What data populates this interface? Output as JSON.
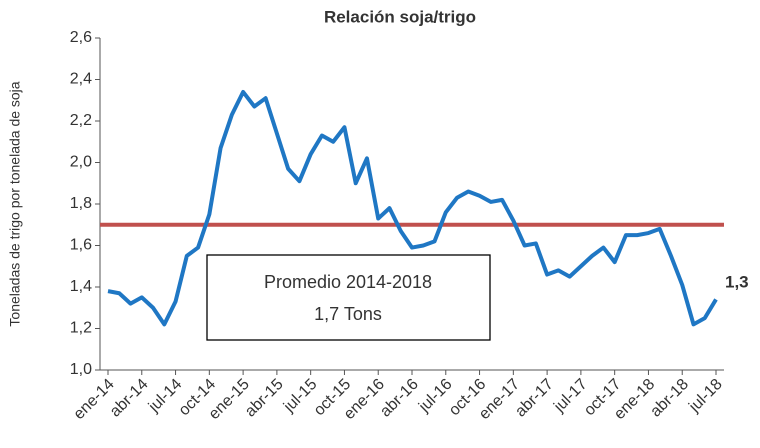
{
  "chart_data": {
    "type": "line",
    "title": "Relación soja/trigo",
    "y_label": "Toneladas de trigo por tonelada de soja",
    "categories": [
      "ene-14",
      null,
      null,
      "abr-14",
      null,
      null,
      "jul-14",
      null,
      null,
      "oct-14",
      null,
      null,
      "ene-15",
      null,
      null,
      "abr-15",
      null,
      null,
      "jul-15",
      null,
      null,
      "oct-15",
      null,
      null,
      "ene-16",
      null,
      null,
      "abr-16",
      null,
      null,
      "jul-16",
      null,
      null,
      "oct-16",
      null,
      null,
      "ene-17",
      null,
      null,
      "abr-17",
      null,
      null,
      "jul-17",
      null,
      null,
      "oct-17",
      null,
      null,
      "ene-18",
      null,
      null,
      "abr-18",
      null,
      null,
      "jul-18"
    ],
    "series": [
      {
        "color": "#1f77c4",
        "values": [
          1.38,
          1.37,
          1.32,
          1.35,
          1.3,
          1.22,
          1.33,
          1.55,
          1.59,
          1.75,
          2.07,
          2.23,
          2.34,
          2.27,
          2.31,
          2.14,
          1.97,
          1.91,
          2.04,
          2.13,
          2.1,
          2.17,
          1.9,
          2.02,
          1.73,
          1.78,
          1.67,
          1.59,
          1.6,
          1.62,
          1.76,
          1.83,
          1.86,
          1.84,
          1.81,
          1.82,
          1.72,
          1.6,
          1.61,
          1.46,
          1.48,
          1.45,
          1.5,
          1.55,
          1.59,
          1.52,
          1.65,
          1.65,
          1.66,
          1.68,
          1.55,
          1.41,
          1.22,
          1.25,
          1.34
        ]
      }
    ],
    "reference": {
      "value": 1.7,
      "color": "#c0504d"
    },
    "annotations": {
      "box_line1": "Promedio 2014-2018",
      "box_line2": "1,7 Tons",
      "last_value": "1,3"
    },
    "ylim": [
      1.0,
      2.6
    ],
    "yticks": [
      {
        "value": 1.0,
        "label": "1,0"
      },
      {
        "value": 1.2,
        "label": "1,2"
      },
      {
        "value": 1.4,
        "label": "1,4"
      },
      {
        "value": 1.6,
        "label": "1,6"
      },
      {
        "value": 1.8,
        "label": "1,8"
      },
      {
        "value": 2.0,
        "label": "2,0"
      },
      {
        "value": 2.2,
        "label": "2,2"
      },
      {
        "value": 2.4,
        "label": "2,4"
      },
      {
        "value": 2.6,
        "label": "2,6"
      }
    ]
  }
}
